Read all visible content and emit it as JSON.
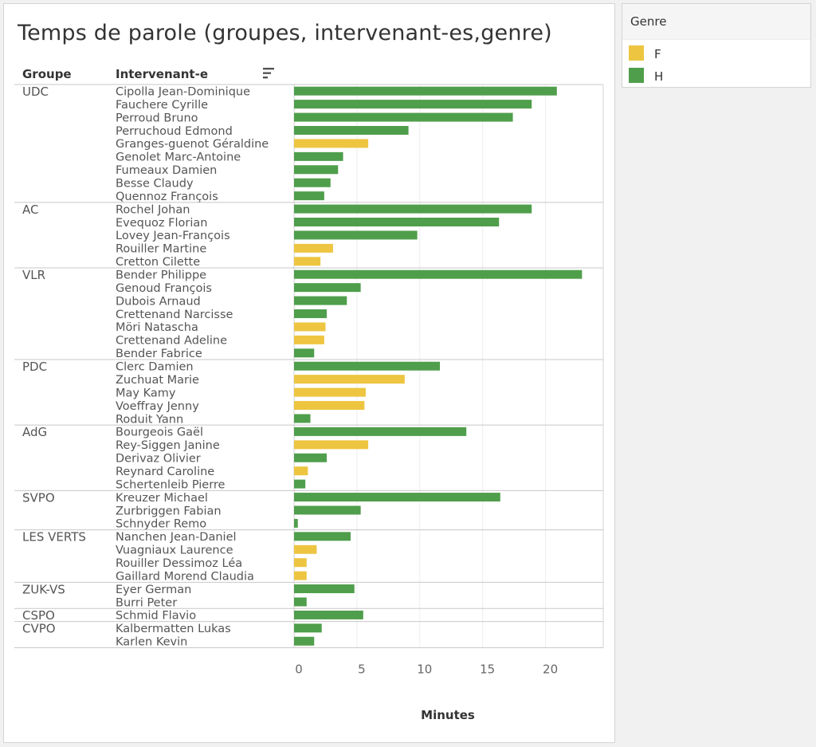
{
  "title": "Temps de parole (groupes, intervenant-es,genre)",
  "headers": {
    "group": "Groupe",
    "speaker": "Intervenant-e"
  },
  "legend": {
    "title": "Genre",
    "items": [
      {
        "label": "F",
        "color": "#edc541"
      },
      {
        "label": "H",
        "color": "#4f9e4b"
      }
    ]
  },
  "chart_data": {
    "type": "bar",
    "orientation": "horizontal",
    "title": "Temps de parole (groupes, intervenant-es,genre)",
    "xlabel": "Minutes",
    "xlim": [
      0,
      24
    ],
    "xticks": [
      0,
      5,
      10,
      15,
      20
    ],
    "grid": true,
    "legend_position": "top-right",
    "groups": [
      {
        "name": "UDC",
        "speakers": [
          {
            "name": "Cipolla Jean-Dominique",
            "genre": "H",
            "value": 20.9
          },
          {
            "name": "Fauchere Cyrille",
            "genre": "H",
            "value": 18.9
          },
          {
            "name": "Perroud Bruno",
            "genre": "H",
            "value": 17.4
          },
          {
            "name": "Perruchoud Edmond",
            "genre": "H",
            "value": 9.1
          },
          {
            "name": "Granges-guenot Géraldine",
            "genre": "F",
            "value": 5.9
          },
          {
            "name": "Genolet Marc-Antoine",
            "genre": "H",
            "value": 3.9
          },
          {
            "name": "Fumeaux Damien",
            "genre": "H",
            "value": 3.5
          },
          {
            "name": "Besse Claudy",
            "genre": "H",
            "value": 2.9
          },
          {
            "name": "Quennoz François",
            "genre": "H",
            "value": 2.4
          }
        ]
      },
      {
        "name": "AC",
        "speakers": [
          {
            "name": "Rochel Johan",
            "genre": "H",
            "value": 18.9
          },
          {
            "name": "Evequoz Florian",
            "genre": "H",
            "value": 16.3
          },
          {
            "name": "Lovey Jean-François",
            "genre": "H",
            "value": 9.8
          },
          {
            "name": "Rouiller Martine",
            "genre": "F",
            "value": 3.1
          },
          {
            "name": "Cretton Cilette",
            "genre": "F",
            "value": 2.1
          }
        ]
      },
      {
        "name": "VLR",
        "speakers": [
          {
            "name": "Bender Philippe",
            "genre": "H",
            "value": 22.9
          },
          {
            "name": "Genoud François",
            "genre": "H",
            "value": 5.3
          },
          {
            "name": "Dubois Arnaud",
            "genre": "H",
            "value": 4.2
          },
          {
            "name": "Crettenand Narcisse",
            "genre": "H",
            "value": 2.6
          },
          {
            "name": "Möri Natascha",
            "genre": "F",
            "value": 2.5
          },
          {
            "name": "Crettenand Adeline",
            "genre": "F",
            "value": 2.4
          },
          {
            "name": "Bender Fabrice",
            "genre": "H",
            "value": 1.6
          }
        ]
      },
      {
        "name": "PDC",
        "speakers": [
          {
            "name": "Clerc Damien",
            "genre": "H",
            "value": 11.6
          },
          {
            "name": "Zuchuat Marie",
            "genre": "F",
            "value": 8.8
          },
          {
            "name": "May Kamy",
            "genre": "F",
            "value": 5.7
          },
          {
            "name": "Voeffray Jenny",
            "genre": "F",
            "value": 5.6
          },
          {
            "name": "Roduit Yann",
            "genre": "H",
            "value": 1.3
          }
        ]
      },
      {
        "name": "AdG",
        "speakers": [
          {
            "name": "Bourgeois Gaël",
            "genre": "H",
            "value": 13.7
          },
          {
            "name": "Rey-Siggen Janine",
            "genre": "F",
            "value": 5.9
          },
          {
            "name": "Derivaz Olivier",
            "genre": "H",
            "value": 2.6
          },
          {
            "name": "Reynard Caroline",
            "genre": "F",
            "value": 1.1
          },
          {
            "name": "Schertenleib Pierre",
            "genre": "H",
            "value": 0.9
          }
        ]
      },
      {
        "name": "SVPO",
        "speakers": [
          {
            "name": "Kreuzer Michael",
            "genre": "H",
            "value": 16.4
          },
          {
            "name": "Zurbriggen Fabian",
            "genre": "H",
            "value": 5.3
          },
          {
            "name": "Schnyder Remo",
            "genre": "H",
            "value": 0.3
          }
        ]
      },
      {
        "name": "LES VERTS",
        "speakers": [
          {
            "name": "Nanchen Jean-Daniel",
            "genre": "H",
            "value": 4.5
          },
          {
            "name": "Vuagniaux Laurence",
            "genre": "F",
            "value": 1.8
          },
          {
            "name": "Rouiller Dessimoz Léa",
            "genre": "F",
            "value": 1.0
          },
          {
            "name": "Gaillard Morend Claudia",
            "genre": "F",
            "value": 1.0
          }
        ]
      },
      {
        "name": "ZUK-VS",
        "speakers": [
          {
            "name": "Eyer German",
            "genre": "H",
            "value": 4.8
          },
          {
            "name": "Burri Peter",
            "genre": "H",
            "value": 1.0
          }
        ]
      },
      {
        "name": "CSPO",
        "speakers": [
          {
            "name": "Schmid Flavio",
            "genre": "H",
            "value": 5.5
          }
        ]
      },
      {
        "name": "CVPO",
        "speakers": [
          {
            "name": "Kalbermatten Lukas",
            "genre": "H",
            "value": 2.2
          },
          {
            "name": "Karlen Kevin",
            "genre": "H",
            "value": 1.6
          }
        ]
      }
    ]
  }
}
